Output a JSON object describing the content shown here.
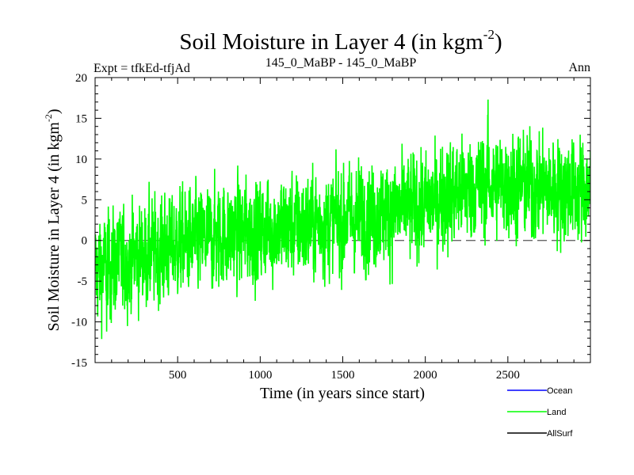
{
  "chart_data": {
    "type": "line",
    "title": "Soil Moisture in Layer 4 (in kgm",
    "title_sup": "-2",
    "title_close": ")",
    "left_label": "Expt = tfkEd-tfjAd",
    "center_label": "145_0_MaBP - 145_0_MaBP",
    "right_label": "Ann",
    "xlabel": "Time (in years since start)",
    "ylabel": "Soil Moisture in Layer 4 (in kgm",
    "ylabel_sup": "-2",
    "ylabel_close": ")",
    "xlim": [
      0,
      3000
    ],
    "ylim": [
      -15,
      20
    ],
    "x_ticks": [
      500,
      1000,
      1500,
      2000,
      2500
    ],
    "y_ticks": [
      -15,
      -10,
      -5,
      0,
      5,
      10,
      15,
      20
    ],
    "zero_line": {
      "y": 0,
      "style": "dashed"
    },
    "grid": false,
    "legend_position": "bottom-right, outside plot",
    "series": [
      {
        "name": "Ocean",
        "color": "#0000ff",
        "values": []
      },
      {
        "name": "Land",
        "color": "#00ff00",
        "trend_points": [
          {
            "x": 0,
            "y": -3.5
          },
          {
            "x": 250,
            "y": -2.0
          },
          {
            "x": 500,
            "y": -0.5
          },
          {
            "x": 750,
            "y": 0.5
          },
          {
            "x": 1000,
            "y": 1.2
          },
          {
            "x": 1250,
            "y": 1.8
          },
          {
            "x": 1500,
            "y": 2.6
          },
          {
            "x": 1750,
            "y": 3.4
          },
          {
            "x": 2000,
            "y": 4.3
          },
          {
            "x": 2250,
            "y": 6.5
          },
          {
            "x": 2500,
            "y": 7.0
          },
          {
            "x": 2750,
            "y": 6.5
          },
          {
            "x": 3000,
            "y": 6.2
          }
        ],
        "approx_min": {
          "x": 70,
          "y": -11.2
        },
        "approx_max": {
          "x": 2380,
          "y": 17.3
        },
        "noise_amplitude": 3.0
      },
      {
        "name": "AllSurf",
        "color": "#000000",
        "values": []
      }
    ]
  }
}
